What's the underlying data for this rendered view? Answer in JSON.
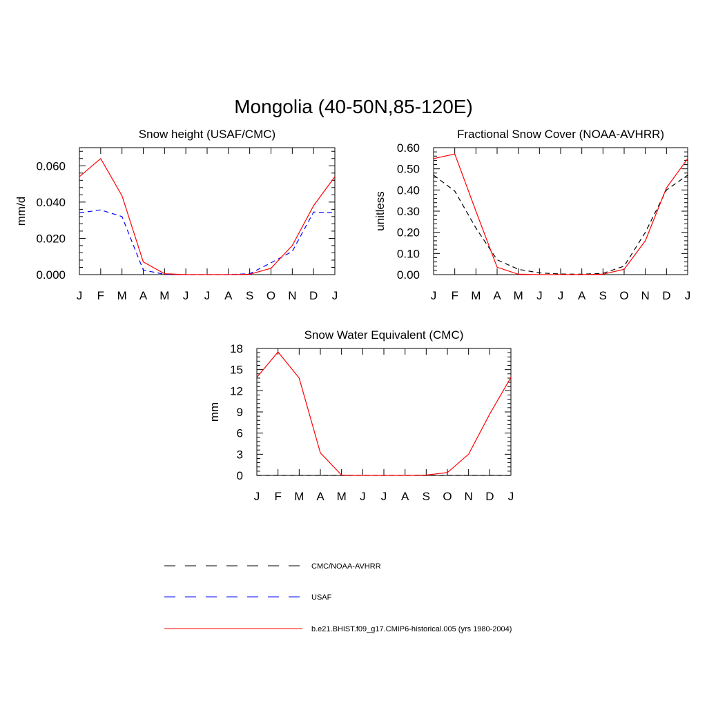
{
  "figure": {
    "title": "Mongolia (40-50N,85-120E)"
  },
  "legend": {
    "entries": [
      {
        "label": "CMC/NOAA-AVHRR",
        "color": "#000000",
        "style": "dashed"
      },
      {
        "label": "USAF",
        "color": "#0000ff",
        "style": "dashed"
      },
      {
        "label": "b.e21.BHIST.f09_g17.CMIP6-historical.005 (yrs 1980-2004)",
        "color": "#ff0000",
        "style": "solid"
      }
    ]
  },
  "chart_data": [
    {
      "type": "line",
      "title": "Snow height (USAF/CMC)",
      "xlabel": "",
      "ylabel": "mm/d",
      "categories": [
        "J",
        "F",
        "M",
        "A",
        "M",
        "J",
        "J",
        "A",
        "S",
        "O",
        "N",
        "D",
        "J"
      ],
      "ylim": [
        0,
        0.07
      ],
      "yticks": [
        0,
        0.02,
        0.04,
        0.06
      ],
      "ytick_labels": [
        "0.000",
        "0.020",
        "0.040",
        "0.060"
      ],
      "grid": false,
      "series": [
        {
          "name": "USAF",
          "color": "#0000ff",
          "style": "dashed",
          "values": [
            0.034,
            0.0357,
            0.032,
            0.0025,
            0.0002,
            0,
            0,
            0,
            0.0005,
            0.0065,
            0.0128,
            0.0345,
            0.034
          ]
        },
        {
          "name": "b.e21.BHIST.f09_g17.CMIP6-historical.005 (yrs 1980-2004)",
          "color": "#ff0000",
          "style": "solid",
          "values": [
            0.054,
            0.064,
            0.0435,
            0.007,
            0.0005,
            0,
            0,
            0,
            0.0002,
            0.0035,
            0.016,
            0.038,
            0.054
          ]
        }
      ]
    },
    {
      "type": "line",
      "title": "Fractional Snow Cover (NOAA-AVHRR)",
      "xlabel": "",
      "ylabel": "unitless",
      "categories": [
        "J",
        "F",
        "M",
        "A",
        "M",
        "J",
        "J",
        "A",
        "S",
        "O",
        "N",
        "D",
        "J"
      ],
      "ylim": [
        0,
        0.6
      ],
      "yticks": [
        0,
        0.1,
        0.2,
        0.3,
        0.4,
        0.5,
        0.6
      ],
      "ytick_labels": [
        "0.00",
        "0.10",
        "0.20",
        "0.30",
        "0.40",
        "0.50",
        "0.60"
      ],
      "grid": false,
      "series": [
        {
          "name": "CMC/NOAA-AVHRR",
          "color": "#000000",
          "style": "dashed",
          "values": [
            0.47,
            0.395,
            0.22,
            0.07,
            0.025,
            0.008,
            0.003,
            0.002,
            0.006,
            0.04,
            0.2,
            0.4,
            0.47
          ]
        },
        {
          "name": "b.e21.BHIST.f09_g17.CMIP6-historical.005 (yrs 1980-2004)",
          "color": "#ff0000",
          "style": "solid",
          "values": [
            0.548,
            0.57,
            0.3,
            0.035,
            0.002,
            0,
            0,
            0,
            0.002,
            0.025,
            0.16,
            0.41,
            0.548
          ]
        }
      ]
    },
    {
      "type": "line",
      "title": "Snow Water Equivalent (CMC)",
      "xlabel": "",
      "ylabel": "mm",
      "categories": [
        "J",
        "F",
        "M",
        "A",
        "M",
        "J",
        "J",
        "A",
        "S",
        "O",
        "N",
        "D",
        "J"
      ],
      "ylim": [
        0,
        18
      ],
      "yticks": [
        0,
        3,
        6,
        9,
        12,
        15,
        18
      ],
      "ytick_labels": [
        "0",
        "3",
        "6",
        "9",
        "12",
        "15",
        "18"
      ],
      "grid": false,
      "series": [
        {
          "name": "CMC/NOAA-AVHRR",
          "color": "#000000",
          "style": "dashed",
          "values": [
            0,
            0,
            0,
            0,
            0,
            0,
            0,
            0,
            0,
            0,
            0,
            0,
            0
          ]
        },
        {
          "name": "b.e21.BHIST.f09_g17.CMIP6-historical.005 (yrs 1980-2004)",
          "color": "#ff0000",
          "style": "solid",
          "values": [
            13.9,
            17.5,
            13.8,
            3.2,
            0.05,
            0,
            0,
            0,
            0.05,
            0.4,
            3.0,
            8.7,
            13.9
          ]
        }
      ]
    }
  ]
}
